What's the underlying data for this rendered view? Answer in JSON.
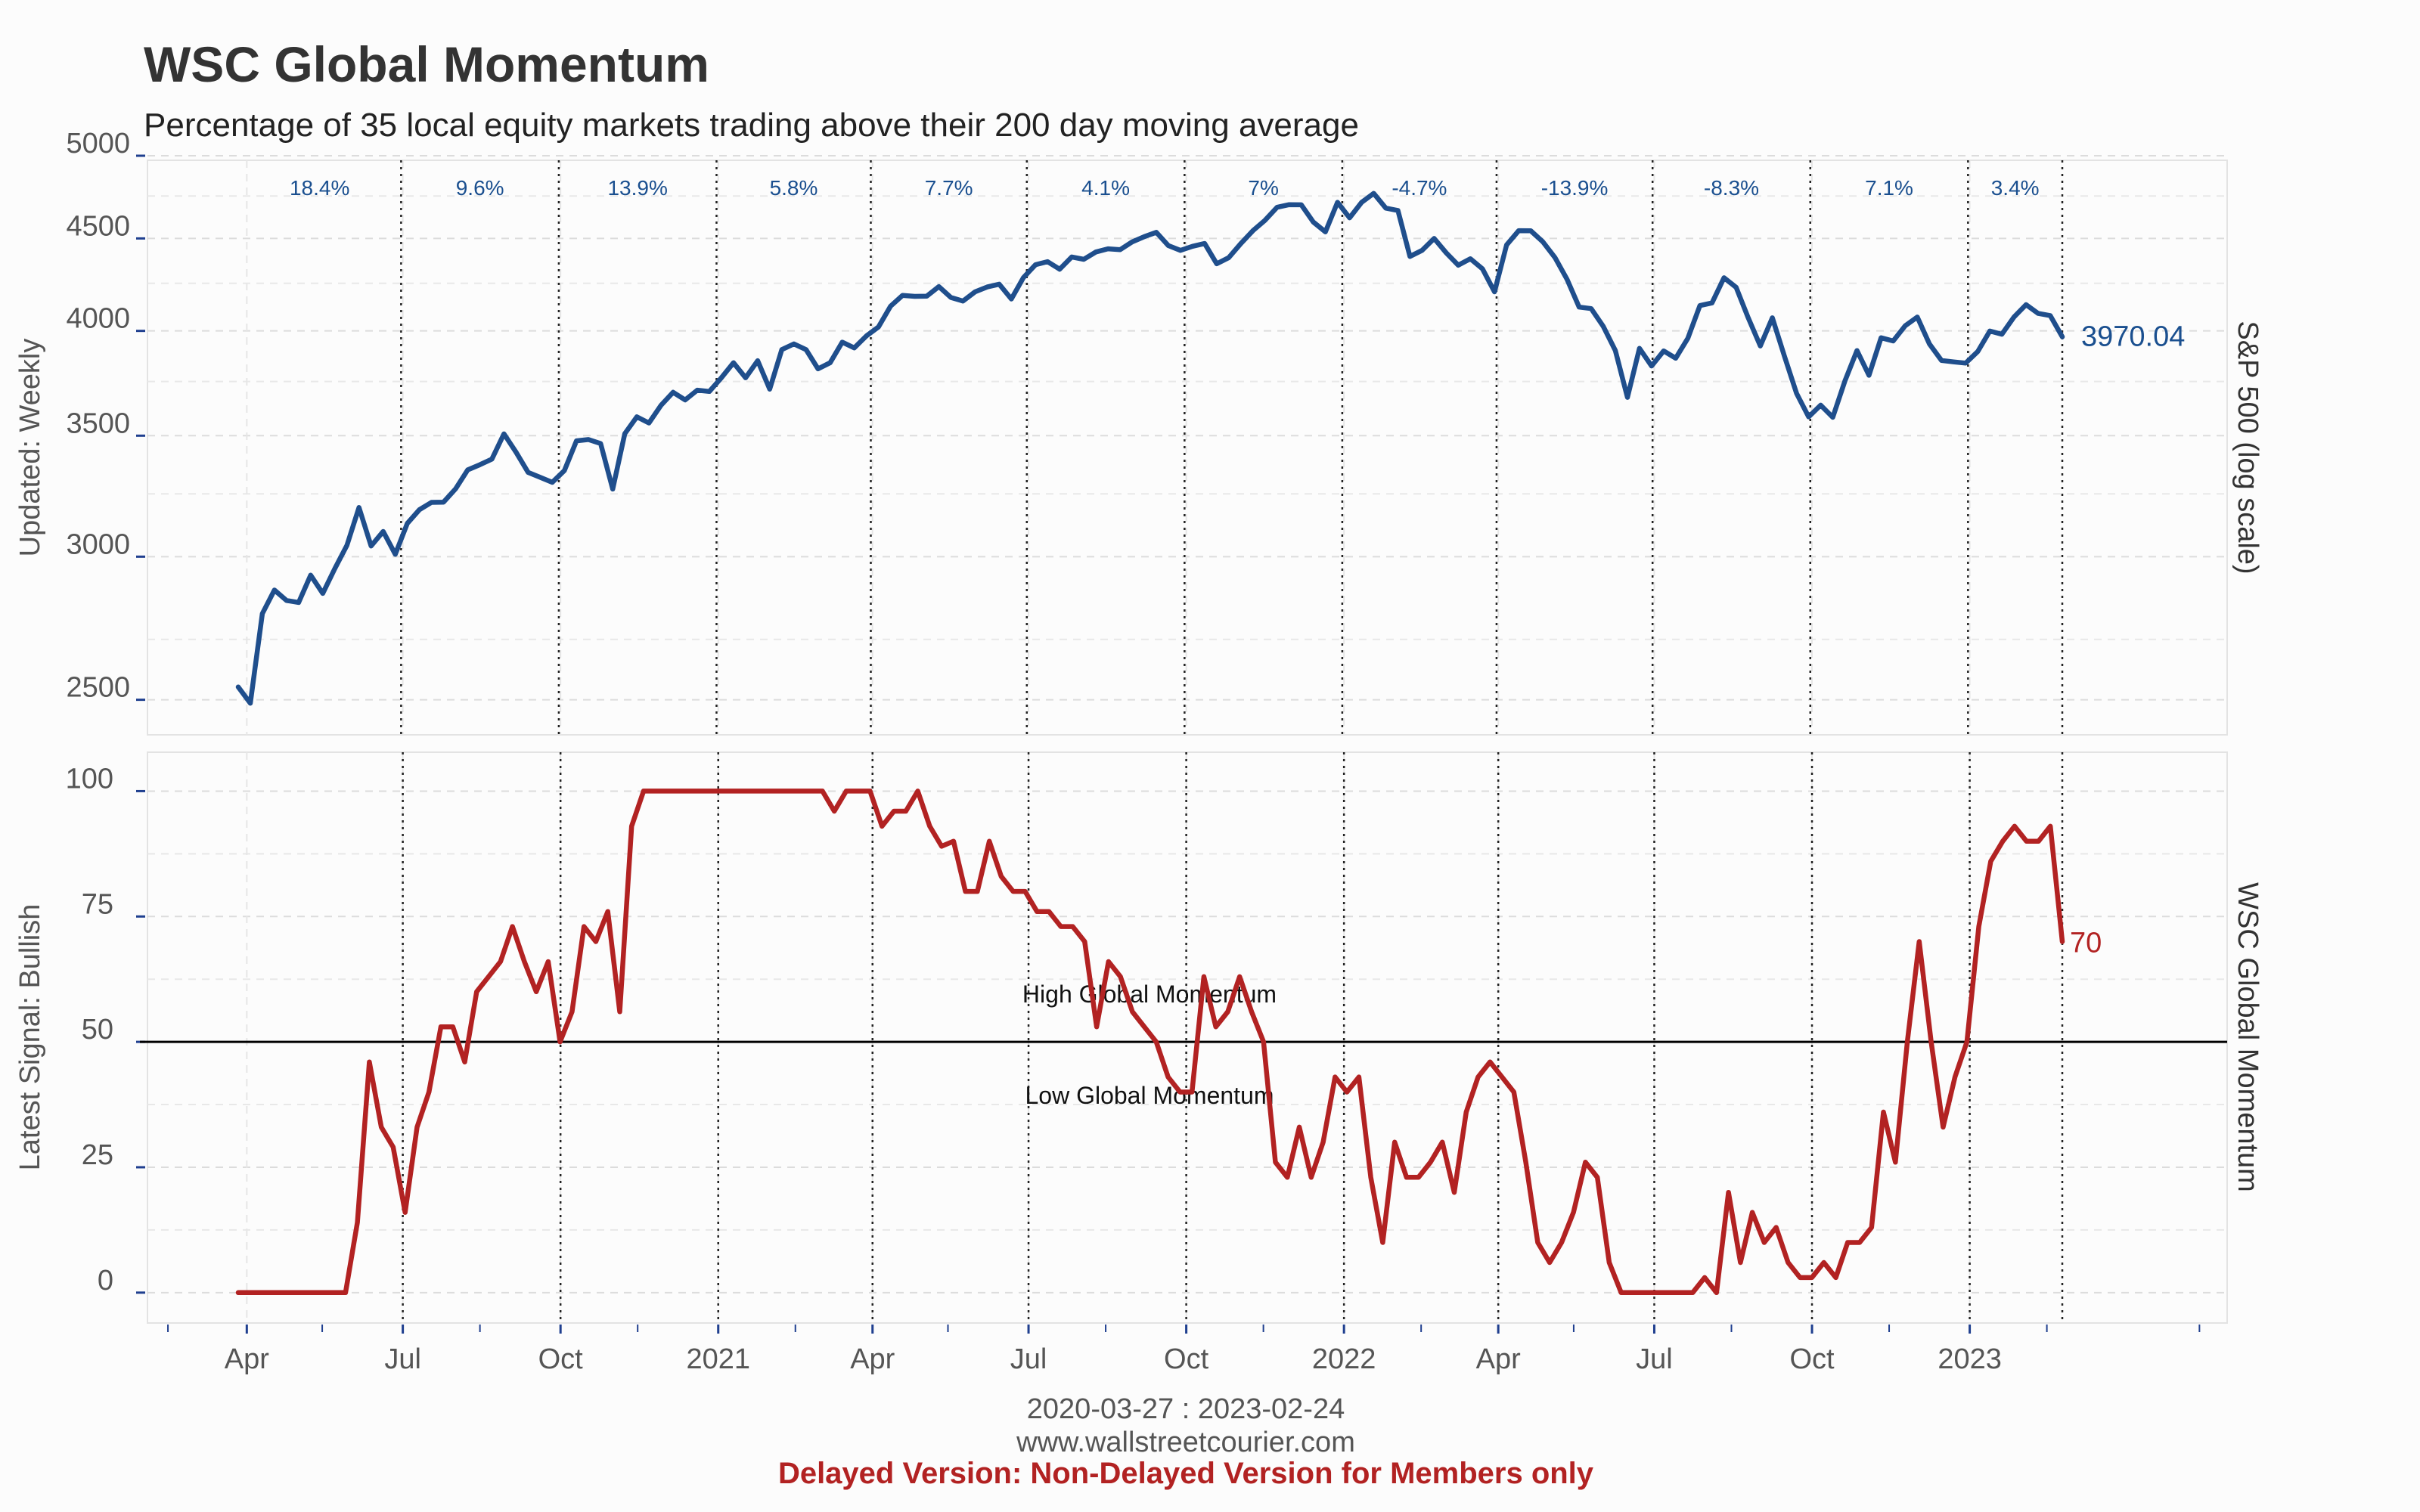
{
  "title": "WSC Global Momentum",
  "subtitle": "Percentage of 35 local equity markets trading above their 200 day moving average",
  "footer": {
    "date_range": "2020-03-27 : 2023-02-24",
    "website": "www.wallstreetcourier.com",
    "delayed_notice": "Delayed Version: Non-Delayed Version for Members only"
  },
  "colors": {
    "sp500": "#1f4e8c",
    "momentum": "#b22222",
    "grid": "#dcdcdc",
    "background": "#fcfcfc"
  },
  "chart_data": [
    {
      "type": "line",
      "name": "sp500-panel",
      "ylabel_left": "Updated: Weekly",
      "ylabel_right": "S&P 500 (log scale)",
      "log_scale": true,
      "ylim": [
        2400,
        5000
      ],
      "yticks": [
        2500,
        3000,
        3500,
        4000,
        4500,
        5000
      ],
      "last_value_label": "3970.04",
      "x_start": "2020-03-27",
      "x_end": "2023-02-24",
      "x_tick_labels": [
        {
          "date": "2020-04-01",
          "label": "Apr"
        },
        {
          "date": "2020-07-01",
          "label": "Jul"
        },
        {
          "date": "2020-10-01",
          "label": "Oct"
        },
        {
          "date": "2021-01-01",
          "label": "2021"
        },
        {
          "date": "2021-04-01",
          "label": "Apr"
        },
        {
          "date": "2021-07-01",
          "label": "Jul"
        },
        {
          "date": "2021-10-01",
          "label": "Oct"
        },
        {
          "date": "2022-01-01",
          "label": "2022"
        },
        {
          "date": "2022-04-01",
          "label": "Apr"
        },
        {
          "date": "2022-07-01",
          "label": "Jul"
        },
        {
          "date": "2022-10-01",
          "label": "Oct"
        },
        {
          "date": "2023-01-01",
          "label": "2023"
        }
      ],
      "quarter_performance": [
        {
          "start": "2020-03-27",
          "end": "2020-06-30",
          "label": "18.4%"
        },
        {
          "start": "2020-06-30",
          "end": "2020-09-30",
          "label": "9.6%"
        },
        {
          "start": "2020-09-30",
          "end": "2020-12-31",
          "label": "13.9%"
        },
        {
          "start": "2020-12-31",
          "end": "2021-03-31",
          "label": "5.8%"
        },
        {
          "start": "2021-03-31",
          "end": "2021-06-30",
          "label": "7.7%"
        },
        {
          "start": "2021-06-30",
          "end": "2021-09-30",
          "label": "4.1%"
        },
        {
          "start": "2021-09-30",
          "end": "2021-12-31",
          "label": "7%"
        },
        {
          "start": "2021-12-31",
          "end": "2022-03-31",
          "label": "-4.7%"
        },
        {
          "start": "2022-03-31",
          "end": "2022-06-30",
          "label": "-13.9%"
        },
        {
          "start": "2022-06-30",
          "end": "2022-09-30",
          "label": "-8.3%"
        },
        {
          "start": "2022-09-30",
          "end": "2022-12-31",
          "label": "7.1%"
        },
        {
          "start": "2022-12-31",
          "end": "2023-02-24",
          "label": "3.4%"
        }
      ],
      "series": [
        {
          "name": "S&P 500",
          "start_date": "2020-03-27",
          "frequency": "weekly",
          "values": [
            2541,
            2489,
            2790,
            2875,
            2837,
            2830,
            2930,
            2863,
            2955,
            3044,
            3194,
            3041,
            3098,
            3009,
            3130,
            3185,
            3215,
            3216,
            3271,
            3351,
            3373,
            3397,
            3508,
            3427,
            3340,
            3319,
            3298,
            3348,
            3477,
            3483,
            3465,
            3270,
            3509,
            3585,
            3557,
            3638,
            3699,
            3663,
            3709,
            3703,
            3768,
            3841,
            3768,
            3851,
            3714,
            3906,
            3934,
            3906,
            3811,
            3841,
            3943,
            3914,
            3974,
            4020,
            4128,
            4185,
            4180,
            4181,
            4232,
            4174,
            4155,
            4204,
            4230,
            4245,
            4166,
            4281,
            4352,
            4369,
            4327,
            4395,
            4382,
            4423,
            4441,
            4436,
            4480,
            4510,
            4535,
            4459,
            4432,
            4455,
            4471,
            4357,
            4391,
            4471,
            4545,
            4605,
            4682,
            4698,
            4697,
            4595,
            4538,
            4712,
            4620,
            4712,
            4766,
            4677,
            4663,
            4398,
            4432,
            4500,
            4418,
            4349,
            4385,
            4329,
            4204,
            4463,
            4545,
            4544,
            4481,
            4392,
            4272,
            4123,
            4115,
            4023,
            3901,
            3675,
            3912,
            3825,
            3899,
            3863,
            3962,
            4131,
            4145,
            4280,
            4228,
            4067,
            3924,
            4067,
            3873,
            3694,
            3585,
            3639,
            3583,
            3752,
            3901,
            3780,
            3965,
            3949,
            4026,
            4071,
            3934,
            3852,
            3845,
            3839,
            3896,
            3999,
            3983,
            4071,
            4136,
            4090,
            4079,
            3970.04
          ]
        }
      ]
    },
    {
      "type": "line",
      "name": "momentum-panel",
      "ylabel_left": "Latest Signal: Bullish",
      "ylabel_right": "WSC Global Momentum",
      "ylim": [
        -5,
        107
      ],
      "yticks": [
        0,
        25,
        50,
        75,
        100
      ],
      "threshold": 50,
      "zone_labels": {
        "high": "High Global Momentum",
        "low": "Low Global Momentum"
      },
      "last_value_label": "70",
      "series": [
        {
          "name": "WSC Global Momentum",
          "start_date": "2020-03-27",
          "frequency": "weekly",
          "values": [
            0,
            0,
            0,
            0,
            0,
            0,
            0,
            0,
            0,
            0,
            14,
            46,
            33,
            29,
            16,
            33,
            40,
            53,
            53,
            46,
            60,
            63,
            66,
            73,
            66,
            60,
            66,
            50,
            56,
            73,
            70,
            76,
            56,
            93,
            100,
            100,
            100,
            100,
            100,
            100,
            100,
            100,
            100,
            100,
            100,
            100,
            100,
            100,
            100,
            100,
            96,
            100,
            100,
            100,
            93,
            96,
            96,
            100,
            93,
            89,
            90,
            80,
            80,
            90,
            83,
            80,
            80,
            76,
            76,
            73,
            73,
            70,
            53,
            66,
            63,
            56,
            53,
            50,
            43,
            40,
            40,
            63,
            53,
            56,
            63,
            56,
            50,
            26,
            23,
            33,
            23,
            30,
            43,
            40,
            43,
            23,
            10,
            30,
            23,
            23,
            26,
            30,
            20,
            36,
            43,
            46,
            43,
            40,
            26,
            10,
            6,
            10,
            16,
            26,
            23,
            6,
            0,
            0,
            0,
            0,
            0,
            0,
            0,
            3,
            0,
            20,
            6,
            16,
            10,
            13,
            6,
            3,
            3,
            6,
            3,
            10,
            10,
            13,
            36,
            26,
            50,
            70,
            50,
            33,
            43,
            50,
            73,
            86,
            90,
            93,
            90,
            90,
            93,
            70
          ]
        }
      ]
    }
  ]
}
